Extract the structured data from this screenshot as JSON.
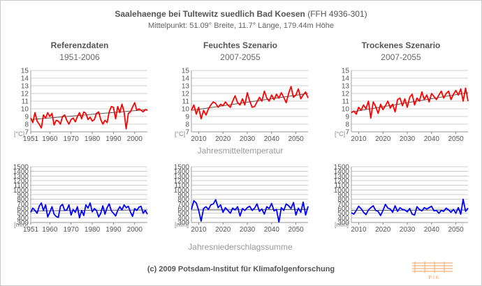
{
  "header": {
    "title": "Saalehaenge bei Tultewitz suedlich Bad Koesen",
    "code": "(FFH 4936-301)",
    "subtitle": "Mittelpunkt: 51.09° Breite, 11.7° Länge, 179.44m Höhe"
  },
  "columns": [
    {
      "title": "Referenzdaten",
      "range": "1951-2006"
    },
    {
      "title": "Feuchtes Szenario",
      "range": "2007-2055"
    },
    {
      "title": "Trockenes Szenario",
      "range": "2007-2055"
    }
  ],
  "captions": {
    "temperature": "Jahresmitteltemperatur",
    "precipitation": "Jahresniederschlagssumme"
  },
  "footer": {
    "copyright": "(c) 2009 Potsdam-Institut für Klimafolgenforschung"
  },
  "logo": {
    "text": "P I K",
    "color": "#f0a060"
  },
  "colors": {
    "temp_line": "#ff0000",
    "precip_line": "#0000ff",
    "trend_line": "#555555",
    "grid": "#c0c0c0"
  },
  "chart_data": [
    {
      "type": "line",
      "title": "Referenzdaten 1951-2006",
      "ylabel": "[°C]",
      "xlabel": "",
      "xlim": [
        1951,
        2006
      ],
      "ylim": [
        7,
        15
      ],
      "yticks": [
        7,
        8,
        9,
        10,
        11,
        12,
        13,
        14,
        15
      ],
      "xticks": [
        1951,
        1960,
        1970,
        1980,
        1990,
        2000
      ],
      "trend": [
        8.6,
        9.9
      ],
      "series": [
        {
          "name": "Jahresmitteltemperatur",
          "color": "#ff0000",
          "x_start": 1951,
          "values": [
            8.8,
            8.2,
            9.5,
            8.4,
            8.0,
            7.5,
            9.2,
            8.8,
            9.5,
            9.0,
            9.4,
            7.9,
            8.5,
            8.4,
            8.0,
            9.0,
            9.2,
            8.5,
            8.0,
            8.6,
            8.8,
            8.3,
            9.0,
            9.5,
            8.7,
            9.6,
            9.4,
            8.6,
            8.9,
            8.4,
            8.6,
            9.4,
            9.6,
            8.6,
            8.0,
            8.5,
            8.2,
            9.6,
            10.3,
            10.2,
            8.7,
            10.3,
            9.5,
            10.6,
            9.6,
            7.4,
            9.4,
            9.6,
            10.2,
            10.8,
            9.8,
            10.0,
            9.8,
            9.6,
            9.9,
            9.8
          ]
        }
      ]
    },
    {
      "type": "line",
      "title": "Feuchtes Szenario 2007-2055",
      "ylabel": "[°C]",
      "xlabel": "Jahresmitteltemperatur",
      "xlim": [
        2007,
        2055
      ],
      "ylim": [
        7,
        15
      ],
      "yticks": [
        7,
        8,
        9,
        10,
        11,
        12,
        13,
        14,
        15
      ],
      "xticks": [
        2010,
        2020,
        2030,
        2040,
        2050
      ],
      "trend": [
        9.8,
        12.0
      ],
      "series": [
        {
          "name": "Jahresmitteltemperatur",
          "color": "#ff0000",
          "x_start": 2007,
          "values": [
            9.8,
            10.5,
            9.3,
            10.2,
            8.7,
            9.8,
            9.2,
            10.0,
            10.5,
            10.9,
            10.7,
            10.2,
            10.6,
            10.4,
            10.9,
            10.5,
            10.2,
            11.0,
            11.7,
            10.8,
            10.5,
            11.3,
            10.5,
            12.1,
            11.0,
            10.2,
            10.3,
            10.9,
            11.5,
            11.0,
            12.3,
            11.4,
            11.0,
            11.8,
            11.2,
            11.9,
            11.4,
            12.1,
            11.5,
            10.8,
            12.0,
            12.9,
            11.5,
            11.8,
            12.6,
            11.3,
            11.8,
            12.2,
            11.4
          ]
        }
      ]
    },
    {
      "type": "line",
      "title": "Trockenes Szenario 2007-2055",
      "ylabel": "[°C]",
      "xlabel": "",
      "xlim": [
        2007,
        2055
      ],
      "ylim": [
        7,
        15
      ],
      "yticks": [
        7,
        8,
        9,
        10,
        11,
        12,
        13,
        14,
        15
      ],
      "xticks": [
        2010,
        2020,
        2030,
        2040,
        2050
      ],
      "trend": [
        9.6,
        12.1
      ],
      "series": [
        {
          "name": "Jahresmitteltemperatur",
          "color": "#ff0000",
          "x_start": 2007,
          "values": [
            9.5,
            9.7,
            9.3,
            10.2,
            9.8,
            10.5,
            10.0,
            11.0,
            8.8,
            10.9,
            10.3,
            9.4,
            10.6,
            9.9,
            10.4,
            11.0,
            10.1,
            10.6,
            9.6,
            11.2,
            11.4,
            10.4,
            11.3,
            10.2,
            11.5,
            11.9,
            10.5,
            11.4,
            11.0,
            12.2,
            11.2,
            11.8,
            10.9,
            12.0,
            11.6,
            11.2,
            11.8,
            12.3,
            11.4,
            12.0,
            12.3,
            11.2,
            11.9,
            12.4,
            11.8,
            12.6,
            11.0,
            12.7,
            11.0
          ]
        }
      ]
    },
    {
      "type": "line",
      "title": "Referenzdaten 1951-2006",
      "ylabel": "[mm]",
      "xlabel": "",
      "xlim": [
        1951,
        2006
      ],
      "ylim": [
        300,
        1500
      ],
      "yticks": [
        300,
        400,
        500,
        600,
        700,
        800,
        900,
        1000,
        1100,
        1200,
        1300,
        1400,
        1500
      ],
      "xticks": [
        1951,
        1960,
        1970,
        1980,
        1990,
        2000
      ],
      "trend": [
        550,
        570
      ],
      "series": [
        {
          "name": "Jahresniederschlagssumme",
          "color": "#0000ff",
          "x_start": 1951,
          "values": [
            520,
            610,
            560,
            500,
            650,
            720,
            560,
            680,
            420,
            520,
            640,
            480,
            430,
            410,
            650,
            690,
            560,
            570,
            680,
            460,
            580,
            520,
            640,
            400,
            560,
            450,
            680,
            610,
            720,
            530,
            600,
            560,
            420,
            500,
            660,
            480,
            620,
            700,
            550,
            500,
            440,
            560,
            640,
            570,
            680,
            620,
            650,
            530,
            430,
            600,
            560,
            630,
            650,
            500,
            560,
            480
          ]
        }
      ]
    },
    {
      "type": "line",
      "title": "Feuchtes Szenario 2007-2055",
      "ylabel": "[mm]",
      "xlabel": "Jahresniederschlagssumme",
      "xlim": [
        2007,
        2055
      ],
      "ylim": [
        300,
        1500
      ],
      "yticks": [
        300,
        400,
        500,
        600,
        700,
        800,
        900,
        1000,
        1100,
        1200,
        1300,
        1400,
        1500
      ],
      "xticks": [
        2010,
        2020,
        2030,
        2040,
        2050
      ],
      "trend": [
        570,
        580
      ],
      "series": [
        {
          "name": "Jahresniederschlagssumme",
          "color": "#0000ff",
          "x_start": 2007,
          "values": [
            580,
            770,
            720,
            560,
            330,
            600,
            640,
            580,
            680,
            700,
            790,
            620,
            680,
            520,
            620,
            560,
            500,
            610,
            570,
            640,
            440,
            600,
            560,
            620,
            650,
            560,
            610,
            700,
            540,
            590,
            480,
            640,
            600,
            710,
            550,
            580,
            310,
            620,
            560,
            700,
            660,
            600,
            730,
            460,
            610,
            520,
            740,
            460,
            650
          ]
        }
      ]
    },
    {
      "type": "line",
      "title": "Trockenes Szenario 2007-2055",
      "ylabel": "[mm]",
      "xlabel": "",
      "xlim": [
        2007,
        2055
      ],
      "ylim": [
        300,
        1500
      ],
      "yticks": [
        300,
        400,
        500,
        600,
        700,
        800,
        900,
        1000,
        1100,
        1200,
        1300,
        1400,
        1500
      ],
      "xticks": [
        2010,
        2020,
        2030,
        2040,
        2050
      ],
      "trend": [
        560,
        570
      ],
      "series": [
        {
          "name": "Jahresniederschlagssumme",
          "color": "#0000ff",
          "x_start": 2007,
          "values": [
            510,
            480,
            560,
            650,
            600,
            520,
            470,
            570,
            620,
            660,
            560,
            540,
            450,
            560,
            690,
            610,
            590,
            520,
            660,
            540,
            620,
            580,
            570,
            530,
            600,
            480,
            460,
            640,
            580,
            550,
            620,
            590,
            620,
            650,
            550,
            560,
            500,
            560,
            540,
            610,
            570,
            520,
            580,
            500,
            620,
            480,
            800,
            540,
            610
          ]
        }
      ]
    }
  ]
}
